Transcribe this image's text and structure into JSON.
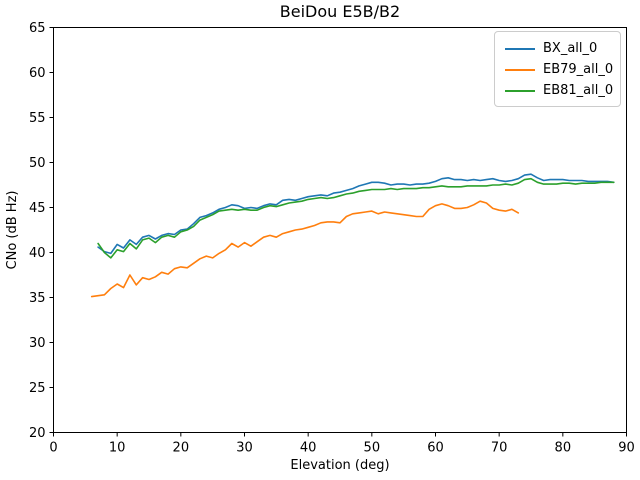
{
  "figure": {
    "background": "#ffffff",
    "axis_color": "#000000",
    "legend_border_color": "#cccccc"
  },
  "chart_data": {
    "type": "line",
    "title": "BeiDou E5B/B2",
    "xlabel": "Elevation (deg)",
    "ylabel": "CNo (dB Hz)",
    "xlim": [
      0,
      90
    ],
    "ylim": [
      20,
      65
    ],
    "x_ticks": [
      0,
      10,
      20,
      30,
      40,
      50,
      60,
      70,
      80,
      90
    ],
    "y_ticks": [
      20,
      25,
      30,
      35,
      40,
      45,
      50,
      55,
      60,
      65
    ],
    "grid": false,
    "legend_position": "upper right",
    "series": [
      {
        "name": "BX_all_0",
        "color": "#1f77b4",
        "x_start": 7,
        "x_step": 1,
        "values": [
          40.6,
          40.1,
          39.9,
          40.9,
          40.5,
          41.4,
          40.9,
          41.7,
          41.9,
          41.5,
          41.9,
          42.1,
          42.0,
          42.5,
          42.6,
          43.2,
          43.9,
          44.1,
          44.4,
          44.8,
          45.0,
          45.3,
          45.2,
          44.9,
          45.0,
          44.9,
          45.2,
          45.4,
          45.3,
          45.8,
          45.9,
          45.8,
          46.0,
          46.2,
          46.3,
          46.4,
          46.3,
          46.6,
          46.7,
          46.9,
          47.1,
          47.4,
          47.6,
          47.8,
          47.8,
          47.7,
          47.5,
          47.6,
          47.6,
          47.5,
          47.6,
          47.6,
          47.7,
          47.9,
          48.2,
          48.3,
          48.1,
          48.1,
          48.0,
          48.1,
          48.0,
          48.1,
          48.2,
          48.0,
          47.9,
          48.0,
          48.2,
          48.6,
          48.7,
          48.3,
          48.0,
          48.1,
          48.1,
          48.1,
          48.0,
          48.0,
          48.0,
          47.9,
          47.9,
          47.9,
          47.9,
          47.8
        ]
      },
      {
        "name": "EB79_all_0",
        "color": "#ff7f0e",
        "x_start": 6,
        "x_step": 1,
        "values": [
          35.1,
          35.2,
          35.3,
          36.0,
          36.5,
          36.1,
          37.5,
          36.4,
          37.2,
          37.0,
          37.3,
          37.8,
          37.6,
          38.2,
          38.4,
          38.3,
          38.8,
          39.3,
          39.6,
          39.4,
          39.9,
          40.3,
          41.0,
          40.6,
          41.1,
          40.7,
          41.2,
          41.7,
          41.9,
          41.7,
          42.1,
          42.3,
          42.5,
          42.6,
          42.8,
          43.0,
          43.3,
          43.4,
          43.4,
          43.3,
          44.0,
          44.3,
          44.4,
          44.5,
          44.6,
          44.3,
          44.5,
          44.4,
          44.3,
          44.2,
          44.1,
          44.0,
          44.0,
          44.8,
          45.2,
          45.4,
          45.2,
          44.9,
          44.9,
          45.0,
          45.3,
          45.7,
          45.5,
          44.9,
          44.7,
          44.6,
          44.8,
          44.4
        ]
      },
      {
        "name": "EB81_all_0",
        "color": "#2ca02c",
        "x_start": 7,
        "x_step": 1,
        "values": [
          41.0,
          40.0,
          39.4,
          40.3,
          40.1,
          41.0,
          40.4,
          41.4,
          41.6,
          41.1,
          41.7,
          41.9,
          41.7,
          42.3,
          42.5,
          42.9,
          43.6,
          43.9,
          44.2,
          44.6,
          44.7,
          44.8,
          44.7,
          44.8,
          44.7,
          44.7,
          45.0,
          45.2,
          45.1,
          45.3,
          45.5,
          45.6,
          45.7,
          45.9,
          46.0,
          46.1,
          46.0,
          46.1,
          46.3,
          46.5,
          46.6,
          46.8,
          46.9,
          47.0,
          47.0,
          47.0,
          47.1,
          47.0,
          47.1,
          47.1,
          47.1,
          47.2,
          47.2,
          47.3,
          47.4,
          47.3,
          47.3,
          47.3,
          47.4,
          47.4,
          47.4,
          47.4,
          47.5,
          47.5,
          47.6,
          47.5,
          47.7,
          48.1,
          48.2,
          47.8,
          47.6,
          47.6,
          47.6,
          47.7,
          47.7,
          47.6,
          47.7,
          47.7,
          47.7,
          47.8,
          47.8,
          47.8
        ]
      }
    ]
  }
}
